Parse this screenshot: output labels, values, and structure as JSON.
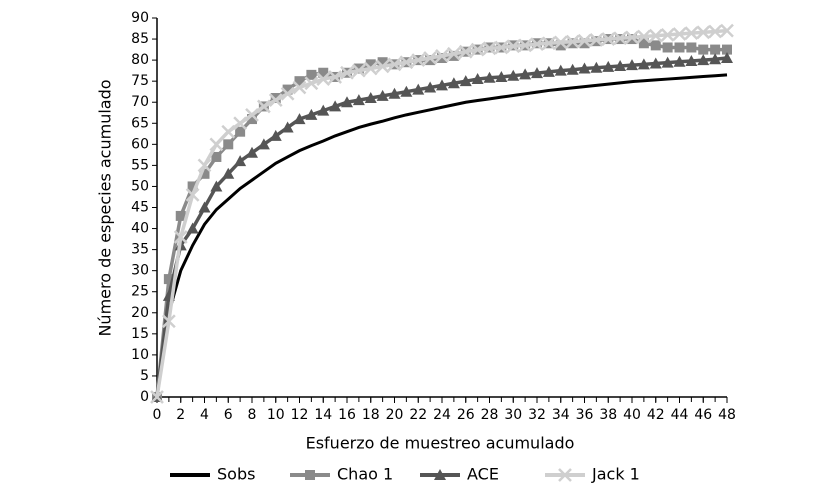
{
  "chart_data": {
    "type": "line",
    "xlabel": "Esfuerzo de muestreo acumulado",
    "ylabel": "Número de especies acumulado",
    "x": [
      0,
      1,
      2,
      3,
      4,
      5,
      6,
      7,
      8,
      9,
      10,
      11,
      12,
      13,
      14,
      15,
      16,
      17,
      18,
      19,
      20,
      21,
      22,
      23,
      24,
      25,
      26,
      27,
      28,
      29,
      30,
      31,
      32,
      33,
      34,
      35,
      36,
      37,
      38,
      39,
      40,
      41,
      42,
      43,
      44,
      45,
      46,
      47,
      48
    ],
    "xlim": [
      0,
      48
    ],
    "xticks": [
      0,
      2,
      4,
      6,
      8,
      10,
      12,
      14,
      16,
      18,
      20,
      22,
      24,
      26,
      28,
      30,
      32,
      34,
      36,
      38,
      40,
      42,
      44,
      46,
      48
    ],
    "ylim": [
      0,
      90
    ],
    "yticks": [
      0,
      5,
      10,
      15,
      20,
      25,
      30,
      35,
      40,
      45,
      50,
      55,
      60,
      65,
      70,
      75,
      80,
      85,
      90
    ],
    "legend": "bottom",
    "series": [
      {
        "name": "Sobs",
        "color": "#000000",
        "marker": "none",
        "values": [
          0,
          20,
          30,
          36,
          41,
          44.5,
          47,
          49.5,
          51.5,
          53.5,
          55.5,
          57,
          58.5,
          59.7,
          60.8,
          62,
          63,
          64,
          64.8,
          65.5,
          66.3,
          67,
          67.6,
          68.2,
          68.8,
          69.4,
          70,
          70.4,
          70.8,
          71.2,
          71.6,
          72,
          72.4,
          72.8,
          73.1,
          73.4,
          73.7,
          74,
          74.3,
          74.6,
          74.9,
          75.1,
          75.3,
          75.5,
          75.7,
          75.9,
          76.1,
          76.3,
          76.5
        ]
      },
      {
        "name": "Chao 1",
        "color": "#8a8a8a",
        "marker": "square",
        "values": [
          0,
          28,
          43,
          50,
          53,
          57,
          60,
          63,
          66,
          69,
          71,
          73,
          75,
          76.5,
          77,
          76,
          77,
          78,
          79,
          79.5,
          79,
          79.5,
          80,
          80,
          80.5,
          81,
          82,
          82.5,
          83,
          83,
          83.5,
          83.5,
          84,
          84,
          83.5,
          84,
          84,
          84.5,
          85,
          85,
          85,
          84,
          83.5,
          83,
          83,
          83,
          82.5,
          82.5,
          82.5
        ]
      },
      {
        "name": "ACE",
        "color": "#555555",
        "marker": "triangle",
        "values": [
          0,
          24,
          36,
          40,
          45,
          50,
          53,
          56,
          58,
          60,
          62,
          64,
          66,
          67,
          68,
          69,
          70,
          70.5,
          71,
          71.5,
          72,
          72.5,
          73,
          73.5,
          74,
          74.5,
          75,
          75.5,
          75.8,
          76,
          76.3,
          76.6,
          76.9,
          77.2,
          77.5,
          77.7,
          78,
          78.2,
          78.4,
          78.6,
          78.8,
          79,
          79.2,
          79.4,
          79.6,
          79.8,
          80,
          80.2,
          80.5
        ]
      },
      {
        "name": "Jack 1",
        "color": "#cfcfcf",
        "marker": "x",
        "values": [
          0,
          18,
          38,
          48,
          55,
          60,
          63,
          65,
          67,
          69,
          70.5,
          72,
          73.5,
          74.5,
          75.5,
          76,
          77,
          77.5,
          78,
          78.5,
          79,
          79.5,
          80,
          80.5,
          81,
          81.5,
          82,
          82.5,
          82.8,
          83,
          83.3,
          83.5,
          83.8,
          84,
          84.2,
          84.4,
          84.6,
          84.8,
          85,
          85.2,
          85.4,
          85.6,
          85.8,
          86,
          86.2,
          86.4,
          86.6,
          86.8,
          87
        ]
      }
    ]
  }
}
